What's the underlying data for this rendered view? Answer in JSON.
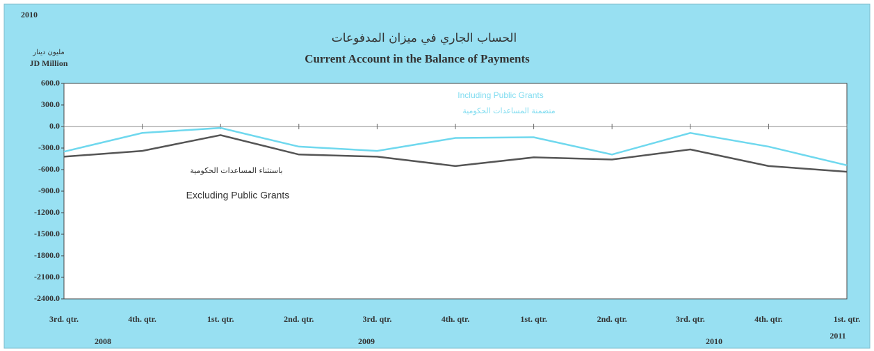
{
  "chart_data": {
    "type": "line",
    "corner_label": "2010",
    "title_ar": "الحساب الجاري في ميزان المدفوعات",
    "title": "Current Account in the Balance of Payments",
    "unit_ar": "مليون دينار",
    "unit": "JD Million",
    "categories": [
      "3rd. qtr.",
      "4th. qtr.",
      "1st. qtr.",
      "2nd. qtr.",
      "3rd. qtr.",
      "4th. qtr.",
      "1st. qtr.",
      "2nd. qtr.",
      "3rd. qtr.",
      "4th. qtr.",
      "1st. qtr."
    ],
    "years": [
      "2008",
      "2009",
      "2010",
      "2011"
    ],
    "series": [
      {
        "name": "Including Public Grants",
        "name_ar": "متضمنة المساعدات الحكومية",
        "color": "#6fd8ee",
        "values": [
          -350,
          -90,
          -20,
          -280,
          -340,
          -160,
          -150,
          -390,
          -90,
          -280,
          -540
        ]
      },
      {
        "name": "Excluding Public Grants",
        "name_ar": "باستثناء المساعدات الحكومية",
        "color": "#555555",
        "values": [
          -420,
          -340,
          -120,
          -390,
          -420,
          -550,
          -430,
          -460,
          -320,
          -550,
          -630
        ]
      }
    ],
    "ylim": [
      -2400,
      600
    ],
    "yticks": [
      {
        "value": 600,
        "label": "600.0"
      },
      {
        "value": 300,
        "label": "300.0"
      },
      {
        "value": 0,
        "label": "0.0"
      },
      {
        "value": -300,
        "label": "-300.0"
      },
      {
        "value": -600,
        "label": "-600.0"
      },
      {
        "value": -900,
        "label": "-900.0"
      },
      {
        "value": -1200,
        "label": "-1200.0"
      },
      {
        "value": -1500,
        "label": "-1500.0"
      },
      {
        "value": -1800,
        "label": "-1800.0"
      },
      {
        "value": -2100,
        "label": "-2100.0"
      },
      {
        "value": -2400,
        "label": "-2400.0"
      }
    ]
  }
}
